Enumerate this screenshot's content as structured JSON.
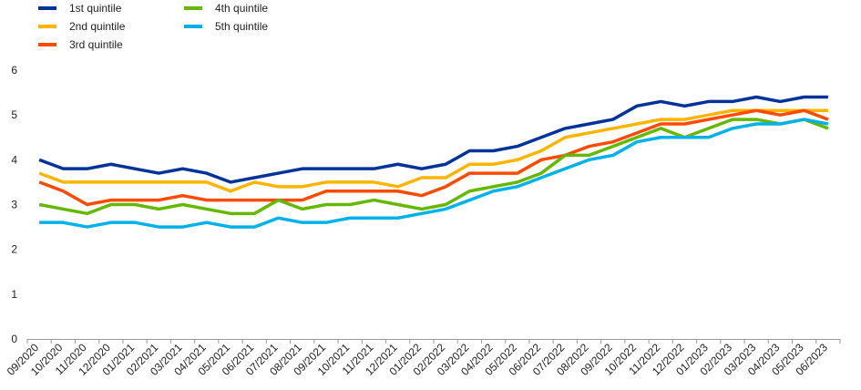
{
  "chart_data": {
    "type": "line",
    "title": "",
    "xlabel": "",
    "ylabel": "",
    "ylim": [
      0,
      6
    ],
    "yticks": [
      0,
      1,
      2,
      3,
      4,
      5,
      6
    ],
    "grid": false,
    "legend_position": "top-left",
    "categories": [
      "09/2020",
      "10/2020",
      "11/2020",
      "12/2020",
      "01/2021",
      "02/2021",
      "03/2021",
      "04/2021",
      "05/2021",
      "06/2021",
      "07/2021",
      "08/2021",
      "09/2021",
      "10/2021",
      "11/2021",
      "12/2021",
      "01/2022",
      "02/2022",
      "03/2022",
      "04/2022",
      "05/2022",
      "06/2022",
      "07/2022",
      "08/2022",
      "09/2022",
      "10/2022",
      "11/2022",
      "12/2022",
      "01/2023",
      "02/2023",
      "03/2023",
      "04/2023",
      "05/2023",
      "06/2023"
    ],
    "series": [
      {
        "name": "1st quintile",
        "color": "#003399",
        "values": [
          4.0,
          3.8,
          3.8,
          3.9,
          3.8,
          3.7,
          3.8,
          3.7,
          3.5,
          3.6,
          3.7,
          3.8,
          3.8,
          3.8,
          3.8,
          3.9,
          3.8,
          3.9,
          4.2,
          4.2,
          4.3,
          4.5,
          4.7,
          4.8,
          4.9,
          5.2,
          5.3,
          5.2,
          5.3,
          5.3,
          5.4,
          5.3,
          5.4,
          5.4
        ]
      },
      {
        "name": "2nd quintile",
        "color": "#FFB400",
        "values": [
          3.7,
          3.5,
          3.5,
          3.5,
          3.5,
          3.5,
          3.5,
          3.5,
          3.3,
          3.5,
          3.4,
          3.4,
          3.5,
          3.5,
          3.5,
          3.4,
          3.6,
          3.6,
          3.9,
          3.9,
          4.0,
          4.2,
          4.5,
          4.6,
          4.7,
          4.8,
          4.9,
          4.9,
          5.0,
          5.1,
          5.1,
          5.1,
          5.1,
          5.1
        ]
      },
      {
        "name": "3rd quintile",
        "color": "#FF4B00",
        "values": [
          3.5,
          3.3,
          3.0,
          3.1,
          3.1,
          3.1,
          3.2,
          3.1,
          3.1,
          3.1,
          3.1,
          3.1,
          3.3,
          3.3,
          3.3,
          3.3,
          3.2,
          3.4,
          3.7,
          3.7,
          3.7,
          4.0,
          4.1,
          4.3,
          4.4,
          4.6,
          4.8,
          4.8,
          4.9,
          5.0,
          5.1,
          5.0,
          5.1,
          4.9
        ]
      },
      {
        "name": "4th quintile",
        "color": "#65B800",
        "values": [
          3.0,
          2.9,
          2.8,
          3.0,
          3.0,
          2.9,
          3.0,
          2.9,
          2.8,
          2.8,
          3.1,
          2.9,
          3.0,
          3.0,
          3.1,
          3.0,
          2.9,
          3.0,
          3.3,
          3.4,
          3.5,
          3.7,
          4.1,
          4.1,
          4.3,
          4.5,
          4.7,
          4.5,
          4.7,
          4.9,
          4.9,
          4.8,
          4.9,
          4.7
        ]
      },
      {
        "name": "5th quintile",
        "color": "#00B1EA",
        "values": [
          2.6,
          2.6,
          2.5,
          2.6,
          2.6,
          2.5,
          2.5,
          2.6,
          2.5,
          2.5,
          2.7,
          2.6,
          2.6,
          2.7,
          2.7,
          2.7,
          2.8,
          2.9,
          3.1,
          3.3,
          3.4,
          3.6,
          3.8,
          4.0,
          4.1,
          4.4,
          4.5,
          4.5,
          4.5,
          4.7,
          4.8,
          4.8,
          4.9,
          4.8
        ]
      }
    ]
  }
}
